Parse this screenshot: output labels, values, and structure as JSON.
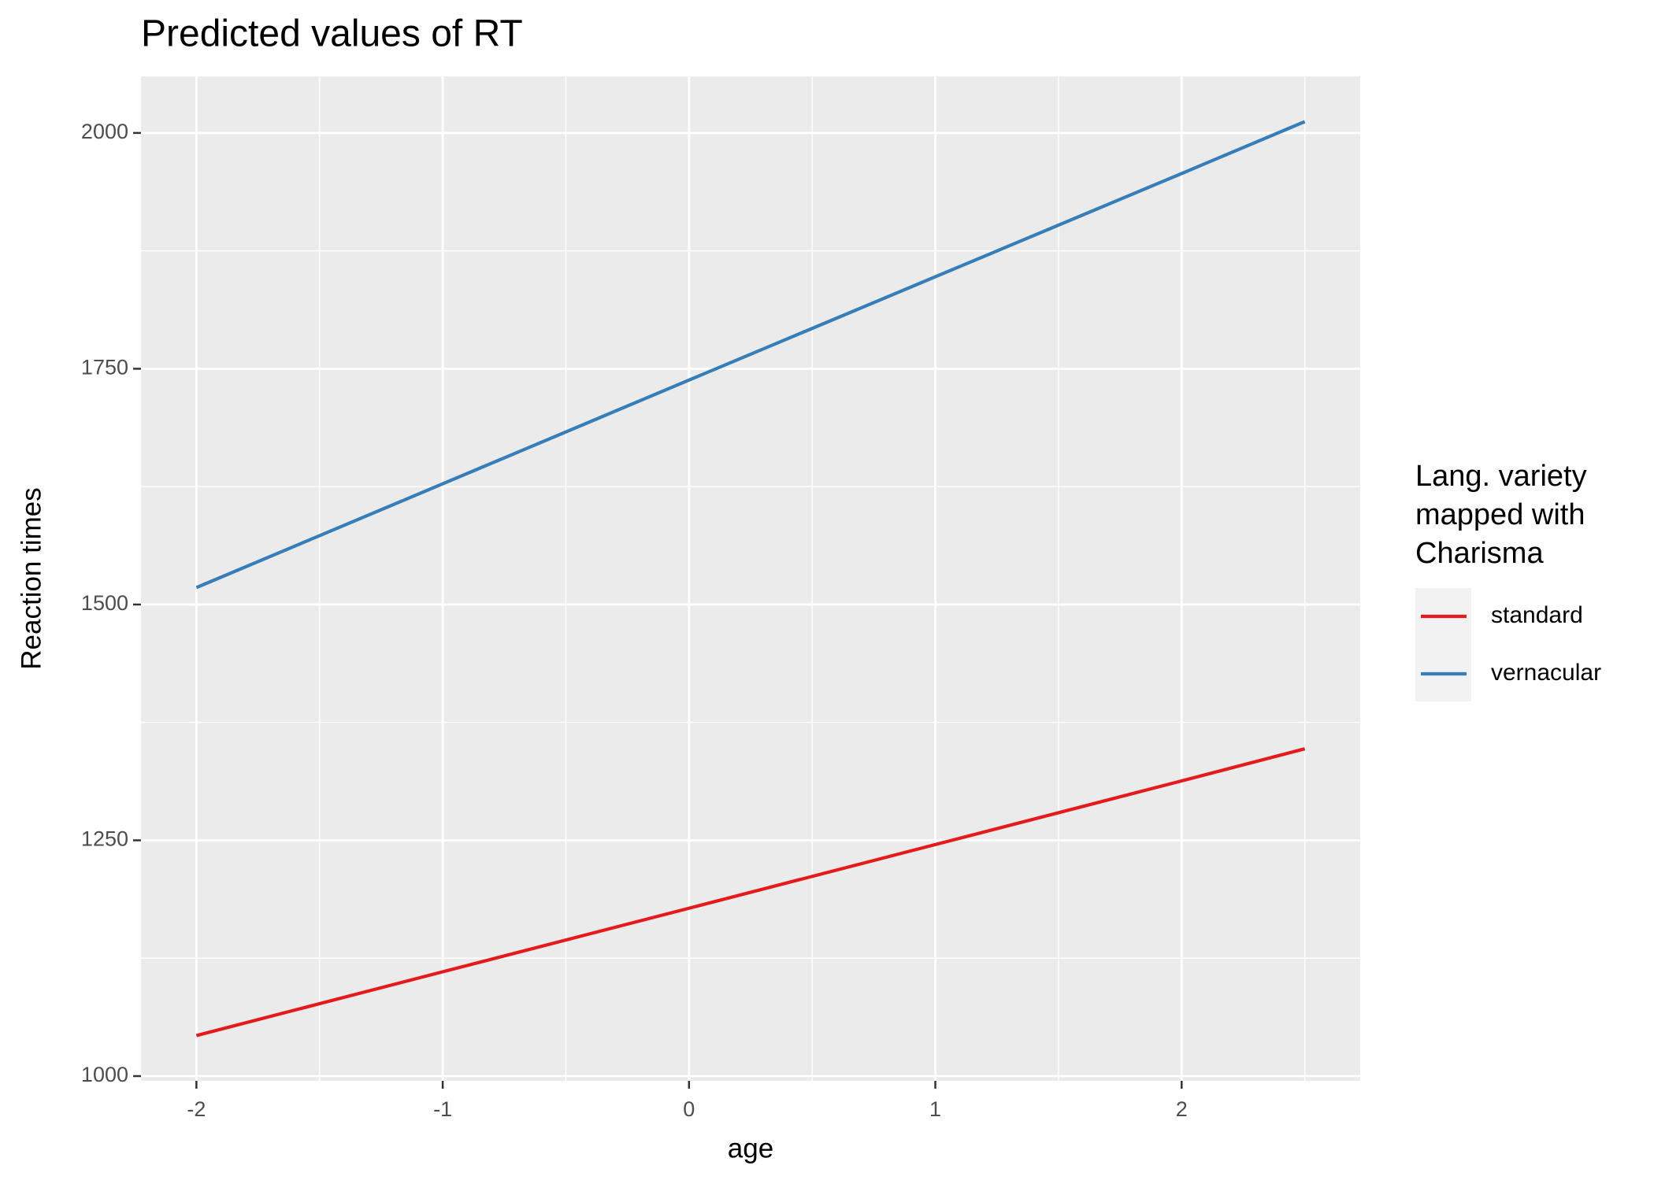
{
  "chart_data": {
    "type": "line",
    "title": "Predicted values of RT",
    "x_label": "age",
    "y_label": "Reaction times",
    "x": [
      -2,
      -1,
      0,
      1,
      2,
      2.5
    ],
    "series": [
      {
        "name": "standard",
        "color": "#e41a1c",
        "values": [
          1043,
          1110.6,
          1178,
          1245.5,
          1313,
          1347
        ]
      },
      {
        "name": "vernacular",
        "color": "#377eb8",
        "values": [
          1518,
          1628,
          1738,
          1847.5,
          1957,
          2012
        ]
      }
    ],
    "xlim": [
      -2.225,
      2.725
    ],
    "xticks": [
      -2,
      -1,
      0,
      1,
      2
    ],
    "ylim": [
      995,
      2060
    ],
    "yticks": [
      1000,
      1250,
      1500,
      1750,
      2000
    ],
    "grid": true,
    "legend_title": [
      "Lang. variety",
      "mapped with",
      "Charisma"
    ],
    "legend_position": "right"
  }
}
